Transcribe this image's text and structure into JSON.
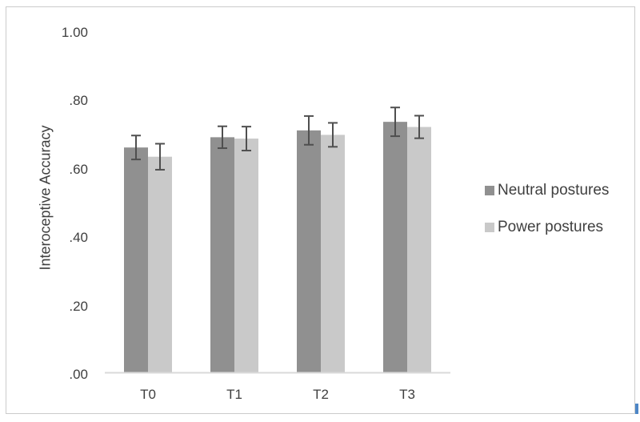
{
  "figure": {
    "background": "#ffffff",
    "border_color": "#cbcbcb"
  },
  "chart_data": {
    "type": "bar",
    "title": "",
    "xlabel": "",
    "ylabel": "Interoceptive Accuracy",
    "categories": [
      "T0",
      "T1",
      "T2",
      "T3"
    ],
    "series": [
      {
        "name": "Neutral postures",
        "color": "#909090",
        "values": [
          0.66,
          0.69,
          0.71,
          0.735
        ],
        "errors": [
          0.035,
          0.032,
          0.042,
          0.042
        ]
      },
      {
        "name": "Power postures",
        "color": "#c9c9c9",
        "values": [
          0.633,
          0.686,
          0.697,
          0.72
        ],
        "errors": [
          0.038,
          0.035,
          0.035,
          0.033
        ]
      }
    ],
    "yticks": [
      {
        "label": "1.00",
        "value": 1.0
      },
      {
        "label": ".80",
        "value": 0.8
      },
      {
        "label": ".60",
        "value": 0.6
      },
      {
        "label": ".40",
        "value": 0.4
      },
      {
        "label": ".20",
        "value": 0.2
      },
      {
        "label": ".00",
        "value": 0.0
      }
    ],
    "ylim": [
      0,
      1.0
    ],
    "grid": false,
    "legend_position": "right",
    "error_bar_color": "#4f4f4f",
    "axis_line_color": "#d9d9d9",
    "text_color": "#3f3f3f"
  },
  "artifact": {
    "name": "text-cursor-artifact",
    "color": "#4d86c6"
  }
}
